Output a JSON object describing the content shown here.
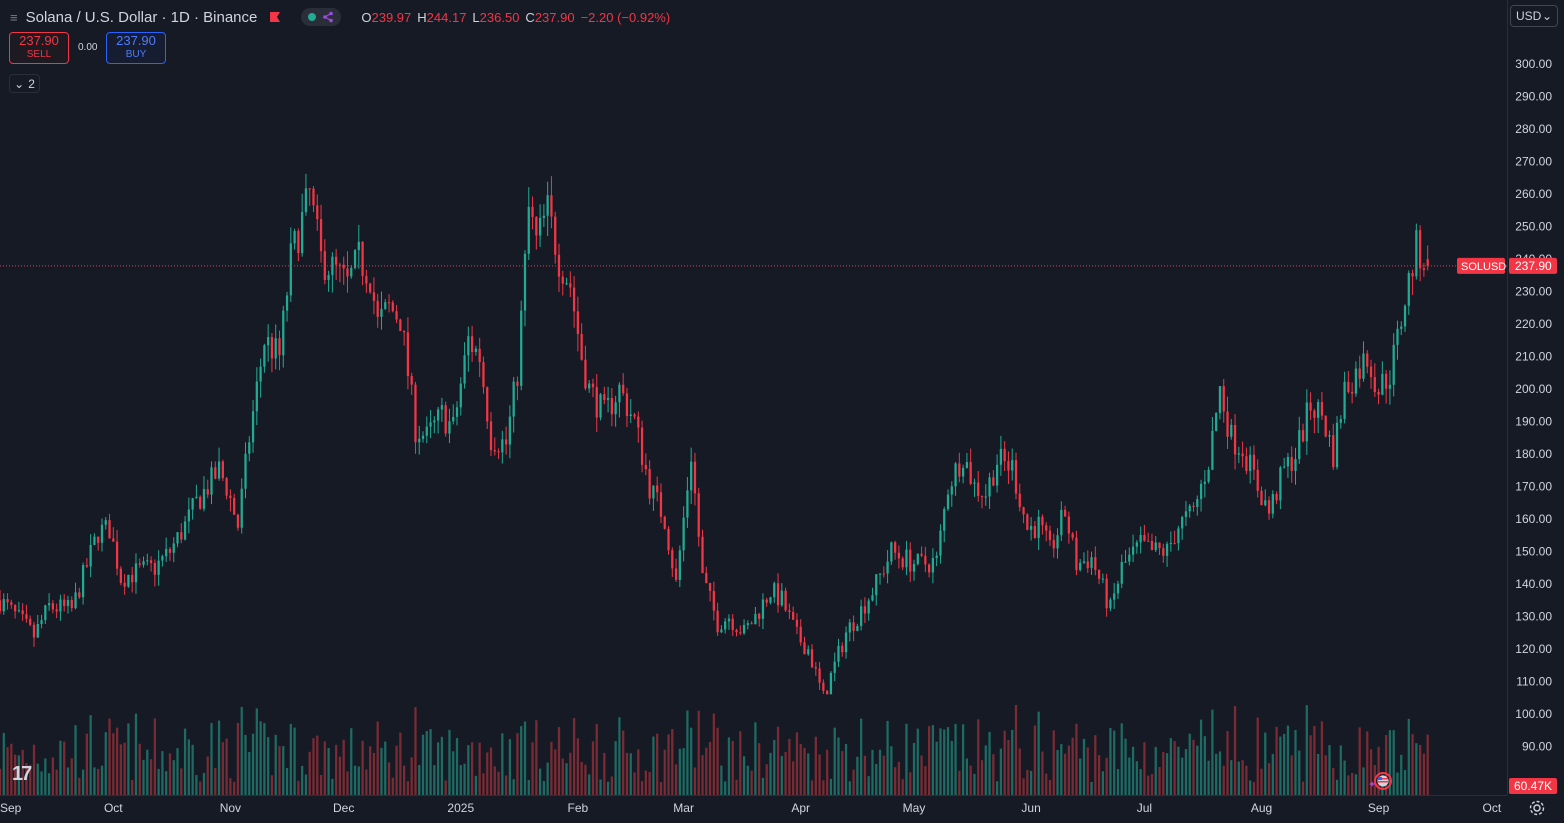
{
  "legend": {
    "symbol_title": "Solana / U.S. Dollar · 1D · Binance",
    "ohlc": [
      {
        "k": "O",
        "v": "239.97"
      },
      {
        "k": "H",
        "v": "244.17"
      },
      {
        "k": "L",
        "v": "236.50"
      },
      {
        "k": "C",
        "v": "237.90"
      },
      {
        "k": "",
        "v": "−2.20 (−0.92%)"
      }
    ]
  },
  "trade": {
    "sell_price": "237.90",
    "sell_label": "SELL",
    "spread": "0.00",
    "buy_price": "237.90",
    "buy_label": "BUY",
    "indicators_count": "2"
  },
  "currency": "USD",
  "price_tag": {
    "symbol": "SOLUSD",
    "value": "237.90"
  },
  "volume_tag": "60.47K",
  "colors": {
    "background": "#161a25",
    "up": "#22ab94",
    "down": "#f23645",
    "volume_up": "#1d6b63",
    "volume_down": "#7a2b33",
    "grid_text": "#d1d4dc"
  },
  "chart_data": {
    "type": "candlestick",
    "interval": "1D",
    "price_axis": {
      "min": 80,
      "max": 310,
      "ticks": [
        90,
        100,
        110,
        120,
        130,
        140,
        150,
        160,
        170,
        180,
        190,
        200,
        210,
        220,
        230,
        240,
        250,
        260,
        270,
        280,
        290,
        300
      ],
      "tick_labels": [
        "90.00",
        "100.00",
        "110.00",
        "120.00",
        "130.00",
        "140.00",
        "150.00",
        "160.00",
        "170.00",
        "180.00",
        "190.00",
        "200.00",
        "210.00",
        "220.00",
        "230.00",
        "240.00",
        "250.00",
        "260.00",
        "270.00",
        "280.00",
        "290.00",
        "300.00"
      ]
    },
    "time_axis": {
      "start": "2024-09-01",
      "end": "2025-10-05",
      "labels": [
        {
          "date": "2024-09-01",
          "label": "Sep"
        },
        {
          "date": "2024-10-01",
          "label": "Oct"
        },
        {
          "date": "2024-11-01",
          "label": "Nov"
        },
        {
          "date": "2024-12-01",
          "label": "Dec"
        },
        {
          "date": "2025-01-01",
          "label": "2025"
        },
        {
          "date": "2025-02-01",
          "label": "Feb"
        },
        {
          "date": "2025-03-01",
          "label": "Mar"
        },
        {
          "date": "2025-04-01",
          "label": "Apr"
        },
        {
          "date": "2025-05-01",
          "label": "May"
        },
        {
          "date": "2025-06-01",
          "label": "Jun"
        },
        {
          "date": "2025-07-01",
          "label": "Jul"
        },
        {
          "date": "2025-08-01",
          "label": "Aug"
        },
        {
          "date": "2025-09-01",
          "label": "Sep"
        },
        {
          "date": "2025-10-01",
          "label": "Oct"
        }
      ]
    },
    "last_price": 237.9,
    "close_path": [
      [
        "2024-09-01",
        135
      ],
      [
        "2024-09-07",
        128
      ],
      [
        "2024-09-10",
        124
      ],
      [
        "2024-09-14",
        133
      ],
      [
        "2024-09-20",
        132
      ],
      [
        "2024-09-27",
        156
      ],
      [
        "2024-09-30",
        157
      ],
      [
        "2024-10-03",
        142
      ],
      [
        "2024-10-08",
        144
      ],
      [
        "2024-10-12",
        145
      ],
      [
        "2024-10-16",
        150
      ],
      [
        "2024-10-20",
        158
      ],
      [
        "2024-10-23",
        165
      ],
      [
        "2024-10-29",
        175
      ],
      [
        "2024-10-31",
        170
      ],
      [
        "2024-11-03",
        158
      ],
      [
        "2024-11-06",
        185
      ],
      [
        "2024-11-10",
        215
      ],
      [
        "2024-11-14",
        210
      ],
      [
        "2024-11-17",
        240
      ],
      [
        "2024-11-22",
        260
      ],
      [
        "2024-11-25",
        240
      ],
      [
        "2024-11-29",
        236
      ],
      [
        "2024-12-02",
        232
      ],
      [
        "2024-12-05",
        240
      ],
      [
        "2024-12-08",
        235
      ],
      [
        "2024-12-10",
        220
      ],
      [
        "2024-12-13",
        225
      ],
      [
        "2024-12-16",
        222
      ],
      [
        "2024-12-20",
        188
      ],
      [
        "2024-12-23",
        185
      ],
      [
        "2024-12-27",
        192
      ],
      [
        "2024-12-30",
        188
      ],
      [
        "2025-01-03",
        215
      ],
      [
        "2025-01-06",
        210
      ],
      [
        "2025-01-09",
        185
      ],
      [
        "2025-01-13",
        183
      ],
      [
        "2025-01-16",
        205
      ],
      [
        "2025-01-19",
        255
      ],
      [
        "2025-01-21",
        245
      ],
      [
        "2025-01-24",
        255
      ],
      [
        "2025-01-27",
        240
      ],
      [
        "2025-01-30",
        232
      ],
      [
        "2025-02-02",
        210
      ],
      [
        "2025-02-04",
        200
      ],
      [
        "2025-02-08",
        192
      ],
      [
        "2025-02-12",
        200
      ],
      [
        "2025-02-16",
        190
      ],
      [
        "2025-02-20",
        170
      ],
      [
        "2025-02-24",
        160
      ],
      [
        "2025-02-27",
        140
      ],
      [
        "2025-03-03",
        180
      ],
      [
        "2025-03-06",
        142
      ],
      [
        "2025-03-10",
        128
      ],
      [
        "2025-03-13",
        130
      ],
      [
        "2025-03-17",
        125
      ],
      [
        "2025-03-20",
        130
      ],
      [
        "2025-03-24",
        138
      ],
      [
        "2025-03-27",
        135
      ],
      [
        "2025-03-31",
        124
      ],
      [
        "2025-04-03",
        120
      ],
      [
        "2025-04-07",
        105
      ],
      [
        "2025-04-10",
        115
      ],
      [
        "2025-04-13",
        125
      ],
      [
        "2025-04-17",
        132
      ],
      [
        "2025-04-21",
        140
      ],
      [
        "2025-04-25",
        150
      ],
      [
        "2025-04-28",
        148
      ],
      [
        "2025-05-02",
        146
      ],
      [
        "2025-05-07",
        147
      ],
      [
        "2025-05-10",
        170
      ],
      [
        "2025-05-14",
        180
      ],
      [
        "2025-05-17",
        170
      ],
      [
        "2025-05-20",
        168
      ],
      [
        "2025-05-23",
        178
      ],
      [
        "2025-05-27",
        176
      ],
      [
        "2025-05-31",
        157
      ],
      [
        "2025-06-03",
        158
      ],
      [
        "2025-06-06",
        150
      ],
      [
        "2025-06-10",
        162
      ],
      [
        "2025-06-13",
        146
      ],
      [
        "2025-06-17",
        148
      ],
      [
        "2025-06-22",
        132
      ],
      [
        "2025-06-25",
        145
      ],
      [
        "2025-06-30",
        152
      ],
      [
        "2025-07-03",
        150
      ],
      [
        "2025-07-07",
        150
      ],
      [
        "2025-07-10",
        158
      ],
      [
        "2025-07-14",
        162
      ],
      [
        "2025-07-18",
        178
      ],
      [
        "2025-07-21",
        200
      ],
      [
        "2025-07-24",
        185
      ],
      [
        "2025-07-27",
        182
      ],
      [
        "2025-07-31",
        170
      ],
      [
        "2025-08-03",
        162
      ],
      [
        "2025-08-07",
        175
      ],
      [
        "2025-08-10",
        180
      ],
      [
        "2025-08-14",
        195
      ],
      [
        "2025-08-17",
        192
      ],
      [
        "2025-08-20",
        180
      ],
      [
        "2025-08-23",
        200
      ],
      [
        "2025-08-26",
        205
      ],
      [
        "2025-08-29",
        210
      ],
      [
        "2025-09-01",
        200
      ],
      [
        "2025-09-04",
        205
      ],
      [
        "2025-09-06",
        215
      ],
      [
        "2025-09-08",
        228
      ],
      [
        "2025-09-11",
        243
      ],
      [
        "2025-09-13",
        240
      ],
      [
        "2025-09-14",
        237.9
      ]
    ]
  }
}
